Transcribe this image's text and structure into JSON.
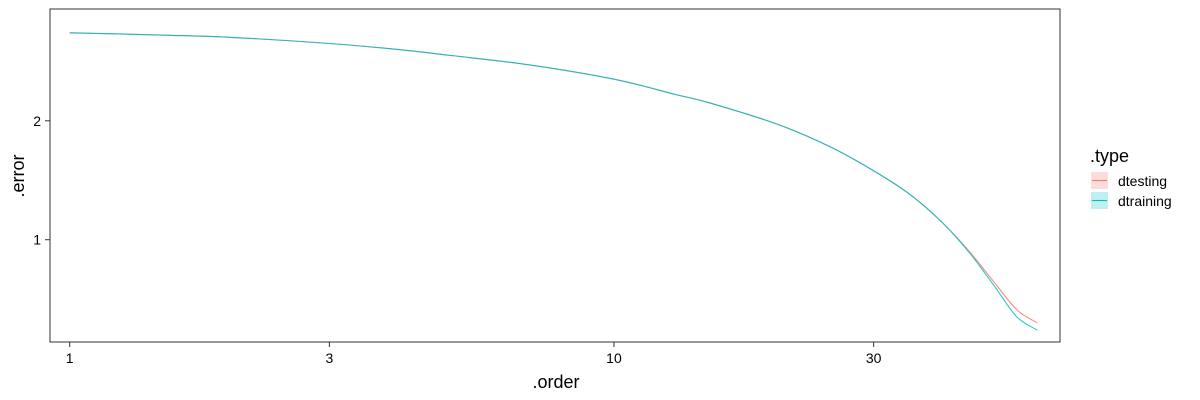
{
  "chart_data": {
    "type": "line",
    "xlabel": ".order",
    "ylabel": ".error",
    "x_scale": "log",
    "xlim": [
      0.92,
      66
    ],
    "ylim": [
      0.14,
      2.94
    ],
    "x_ticks": [
      {
        "value": 1,
        "label": "1"
      },
      {
        "value": 3,
        "label": "3"
      },
      {
        "value": 10,
        "label": "10"
      },
      {
        "value": 30,
        "label": "30"
      }
    ],
    "y_ticks": [
      {
        "value": 1,
        "label": "1"
      },
      {
        "value": 2,
        "label": "2"
      }
    ],
    "grid": false,
    "legend": {
      "title": ".type",
      "position": "right"
    },
    "series": [
      {
        "name": "dtesting",
        "color": "#F8766D",
        "x": [
          1,
          1.5,
          2,
          3,
          4,
          5,
          7,
          10,
          13,
          15,
          20,
          25,
          30,
          35,
          40,
          45,
          50,
          55,
          60
        ],
        "y": [
          2.74,
          2.72,
          2.7,
          2.65,
          2.6,
          2.55,
          2.47,
          2.35,
          2.22,
          2.15,
          1.97,
          1.78,
          1.58,
          1.38,
          1.15,
          0.9,
          0.64,
          0.41,
          0.3
        ]
      },
      {
        "name": "dtraining",
        "color": "#00BFC4",
        "x": [
          1,
          1.5,
          2,
          3,
          4,
          5,
          7,
          10,
          13,
          15,
          20,
          25,
          30,
          35,
          40,
          45,
          50,
          55,
          60
        ],
        "y": [
          2.74,
          2.72,
          2.7,
          2.65,
          2.6,
          2.55,
          2.47,
          2.35,
          2.22,
          2.15,
          1.97,
          1.78,
          1.58,
          1.38,
          1.15,
          0.89,
          0.61,
          0.35,
          0.24
        ]
      }
    ]
  }
}
